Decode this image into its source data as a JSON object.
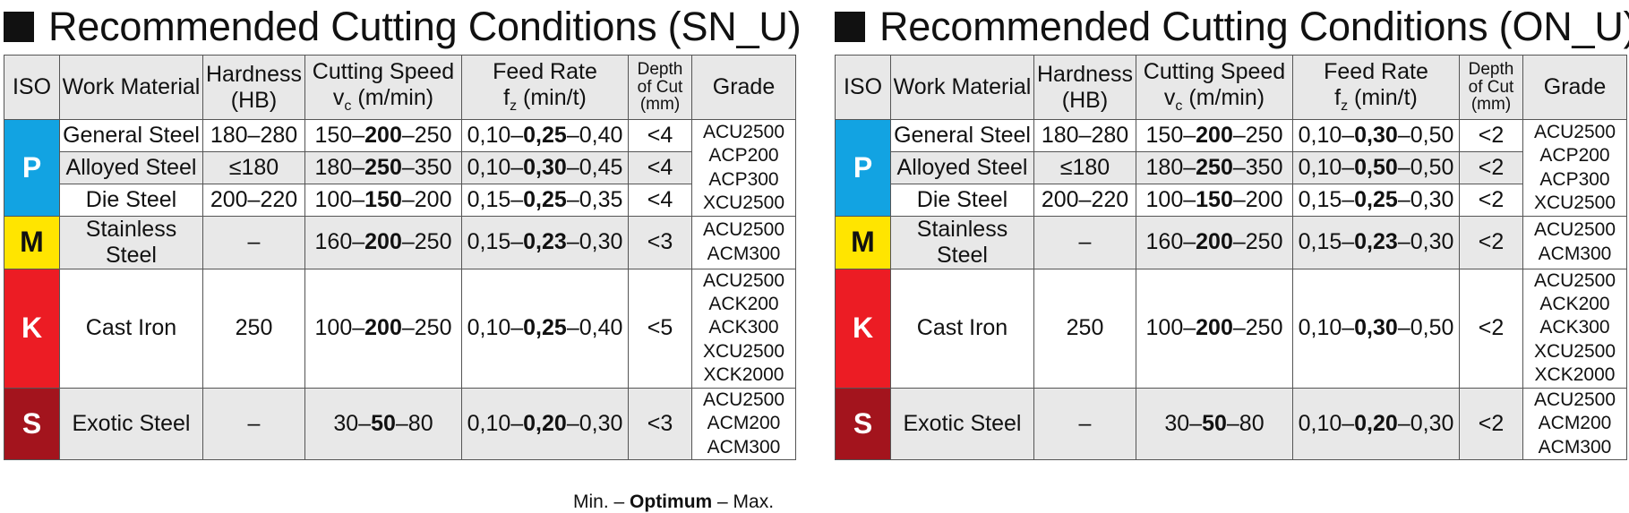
{
  "iso_colors": {
    "P": "#12a3e2",
    "M": "#ffe500",
    "K": "#ec1c24",
    "S": "#a3141d"
  },
  "header_bg": "#e8e8e8",
  "title_marker_icon": "black-square-icon",
  "headers": {
    "iso": "ISO",
    "work_material": "Work Material",
    "hardness": "Hardness (HB)",
    "speed_a": "Cutting Speed",
    "speed_b": "v",
    "speed_sub": "c",
    "speed_c": " (m/min)",
    "feed_a": "Feed Rate",
    "feed_b": "f",
    "feed_sub": "z",
    "feed_c": " (min/t)",
    "depth": "Depth of Cut (mm)",
    "grade": "Grade"
  },
  "tables": [
    {
      "title": "Recommended Cutting Conditions (SN_U)",
      "rows": [
        {
          "iso": "P",
          "material": "General Steel",
          "hardness": "180–280",
          "speed_min": "150–",
          "speed_opt": "200",
          "speed_max": "–250",
          "feed_min": "0,10–",
          "feed_opt": "0,25",
          "feed_max": "–0,40",
          "depth": "<4",
          "grade": "ACU2500\nACP200\nACP300\nXCU2500"
        },
        {
          "iso": "",
          "material": "Alloyed Steel",
          "hardness": "≤180",
          "speed_min": "180–",
          "speed_opt": "250",
          "speed_max": "–350",
          "feed_min": "0,10–",
          "feed_opt": "0,30",
          "feed_max": "–0,45",
          "depth": "<4",
          "grade": ""
        },
        {
          "iso": "",
          "material": "Die Steel",
          "hardness": "200–220",
          "speed_min": "100–",
          "speed_opt": "150",
          "speed_max": "–200",
          "feed_min": "0,15–",
          "feed_opt": "0,25",
          "feed_max": "–0,35",
          "depth": "<4",
          "grade": ""
        },
        {
          "iso": "M",
          "material": "Stainless Steel",
          "hardness": "–",
          "speed_min": "160–",
          "speed_opt": "200",
          "speed_max": "–250",
          "feed_min": "0,15–",
          "feed_opt": "0,23",
          "feed_max": "–0,30",
          "depth": "<3",
          "grade": "ACU2500\nACM300"
        },
        {
          "iso": "K",
          "material": "Cast Iron",
          "hardness": "250",
          "speed_min": "100–",
          "speed_opt": "200",
          "speed_max": "–250",
          "feed_min": "0,10–",
          "feed_opt": "0,25",
          "feed_max": "–0,40",
          "depth": "<5",
          "grade": "ACU2500\nACK200\nACK300\nXCU2500\nXCK2000"
        },
        {
          "iso": "S",
          "material": "Exotic Steel",
          "hardness": "–",
          "speed_min": "30–",
          "speed_opt": "50",
          "speed_max": "–80",
          "feed_min": "0,10–",
          "feed_opt": "0,20",
          "feed_max": "–0,30",
          "depth": "<3",
          "grade": "ACU2500\nACM200\nACM300"
        }
      ]
    },
    {
      "title": "Recommended Cutting Conditions (ON_U)",
      "rows": [
        {
          "iso": "P",
          "material": "General Steel",
          "hardness": "180–280",
          "speed_min": "150–",
          "speed_opt": "200",
          "speed_max": "–250",
          "feed_min": "0,10–",
          "feed_opt": "0,30",
          "feed_max": "–0,50",
          "depth": "<2",
          "grade": "ACU2500\nACP200\nACP300\nXCU2500"
        },
        {
          "iso": "",
          "material": "Alloyed Steel",
          "hardness": "≤180",
          "speed_min": "180–",
          "speed_opt": "250",
          "speed_max": "–350",
          "feed_min": "0,10–",
          "feed_opt": "0,50",
          "feed_max": "–0,50",
          "depth": "<2",
          "grade": ""
        },
        {
          "iso": "",
          "material": "Die Steel",
          "hardness": "200–220",
          "speed_min": "100–",
          "speed_opt": "150",
          "speed_max": "–200",
          "feed_min": "0,15–",
          "feed_opt": "0,25",
          "feed_max": "–0,30",
          "depth": "<2",
          "grade": ""
        },
        {
          "iso": "M",
          "material": "Stainless Steel",
          "hardness": "–",
          "speed_min": "160–",
          "speed_opt": "200",
          "speed_max": "–250",
          "feed_min": "0,15–",
          "feed_opt": "0,23",
          "feed_max": "–0,30",
          "depth": "<2",
          "grade": "ACU2500\nACM300"
        },
        {
          "iso": "K",
          "material": "Cast Iron",
          "hardness": "250",
          "speed_min": "100–",
          "speed_opt": "200",
          "speed_max": "–250",
          "feed_min": "0,10–",
          "feed_opt": "0,30",
          "feed_max": "–0,50",
          "depth": "<2",
          "grade": "ACU2500\nACK200\nACK300\nXCU2500\nXCK2000"
        },
        {
          "iso": "S",
          "material": "Exotic Steel",
          "hardness": "–",
          "speed_min": "30–",
          "speed_opt": "50",
          "speed_max": "–80",
          "feed_min": "0,10–",
          "feed_opt": "0,20",
          "feed_max": "–0,30",
          "depth": "<2",
          "grade": "ACU2500\nACM200\nACM300"
        }
      ]
    }
  ],
  "footnote": {
    "min": "Min. – ",
    "opt": "Optimum",
    "max": " – Max."
  }
}
